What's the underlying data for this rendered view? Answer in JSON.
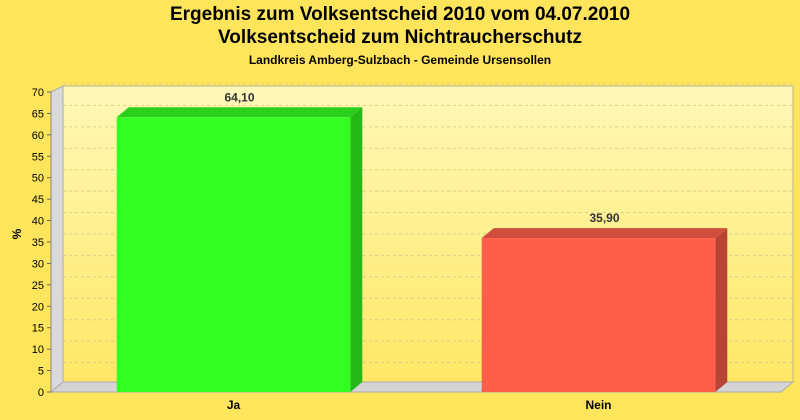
{
  "chart_data": {
    "type": "bar",
    "title": "Ergebnis zum Volksentscheid 2010 vom 04.07.2010",
    "subtitle": "Volksentscheid zum Nichtraucherschutz",
    "caption": "Landkreis Amberg-Sulzbach - Gemeinde Ursensollen",
    "xlabel": "",
    "ylabel": "%",
    "ylim": [
      0,
      70
    ],
    "yticks": [
      0,
      5,
      10,
      15,
      20,
      25,
      30,
      35,
      40,
      45,
      50,
      55,
      60,
      65,
      70
    ],
    "grid": true,
    "categories": [
      "Ja",
      "Nein"
    ],
    "values": [
      64.1,
      35.9
    ],
    "value_labels": [
      "64,10",
      "35,90"
    ],
    "colors": [
      "#33ff22",
      "#ff5e4a"
    ]
  },
  "style": {
    "background": "#ffe55c",
    "plot_top": "#fff7b0",
    "plot_bottom": "#ffe866"
  }
}
